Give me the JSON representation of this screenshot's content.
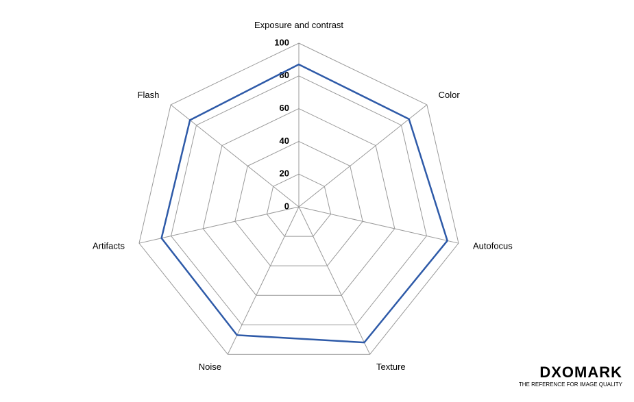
{
  "chart_data": {
    "type": "radar",
    "categories": [
      "Exposure and contrast",
      "Color",
      "Autofocus",
      "Texture",
      "Noise",
      "Artifacts",
      "Flash"
    ],
    "series": [
      {
        "color": "#2e5aa8",
        "values": [
          87,
          86,
          93,
          92,
          87,
          86,
          85
        ]
      }
    ],
    "ylim": [
      0,
      100
    ],
    "yticks": [
      0,
      20,
      40,
      60,
      80,
      100
    ],
    "grid": true
  },
  "branding": {
    "name": "DXOMARK",
    "tagline": "THE REFERENCE FOR IMAGE QUALITY"
  }
}
